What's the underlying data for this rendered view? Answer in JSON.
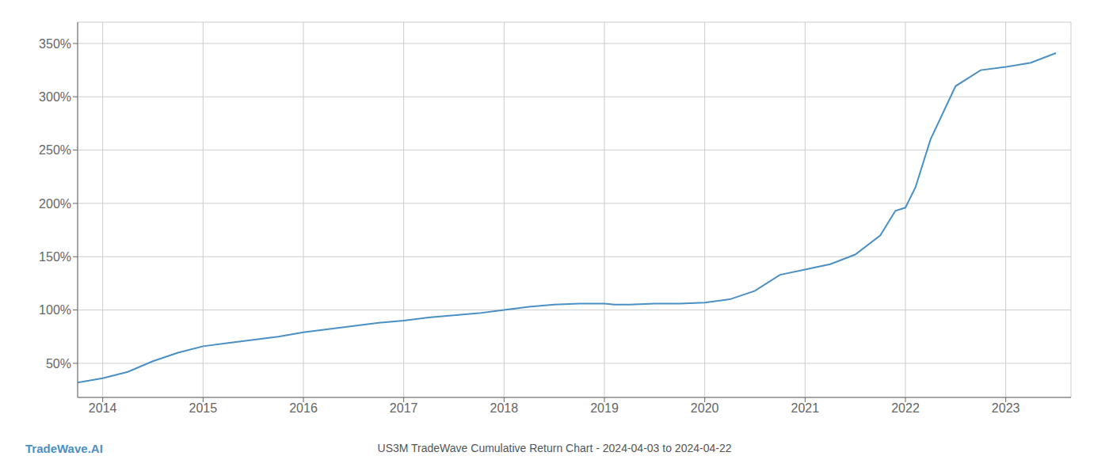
{
  "chart_data": {
    "type": "line",
    "title": "US3M TradeWave Cumulative Return Chart - 2024-04-03 to 2024-04-22",
    "annotations": [
      "TradeWave.AI"
    ],
    "x": [
      2013.75,
      2014.0,
      2014.25,
      2014.5,
      2014.75,
      2015.0,
      2015.25,
      2015.5,
      2015.75,
      2016.0,
      2016.25,
      2016.5,
      2016.75,
      2017.0,
      2017.25,
      2017.5,
      2017.75,
      2018.0,
      2018.25,
      2018.5,
      2018.75,
      2019.0,
      2019.1,
      2019.25,
      2019.5,
      2019.75,
      2020.0,
      2020.25,
      2020.5,
      2020.75,
      2021.0,
      2021.1,
      2021.25,
      2021.5,
      2021.75,
      2021.9,
      2022.0,
      2022.1,
      2022.25,
      2022.5,
      2022.75,
      2023.0,
      2023.25,
      2023.5
    ],
    "values": [
      32,
      36,
      42,
      52,
      60,
      66,
      69,
      72,
      75,
      79,
      82,
      85,
      88,
      90,
      93,
      95,
      97,
      100,
      103,
      105,
      106,
      106,
      105,
      105,
      106,
      106,
      107,
      110,
      118,
      133,
      138,
      140,
      143,
      152,
      170,
      193,
      196,
      215,
      260,
      310,
      325,
      328,
      332,
      341
    ],
    "color": "#4a90c4",
    "xlim": [
      2013.75,
      2023.65
    ],
    "xticks": [
      2014,
      2015,
      2016,
      2017,
      2018,
      2019,
      2020,
      2021,
      2022,
      2023
    ],
    "ylim": [
      18,
      370
    ],
    "yticks": [
      {
        "value": 50,
        "label": "50%"
      },
      {
        "value": 100,
        "label": "100%"
      },
      {
        "value": 150,
        "label": "150%"
      },
      {
        "value": 200,
        "label": "200%"
      },
      {
        "value": 250,
        "label": "250%"
      },
      {
        "value": 300,
        "label": "300%"
      },
      {
        "value": 350,
        "label": "350%"
      }
    ],
    "grid": true
  }
}
